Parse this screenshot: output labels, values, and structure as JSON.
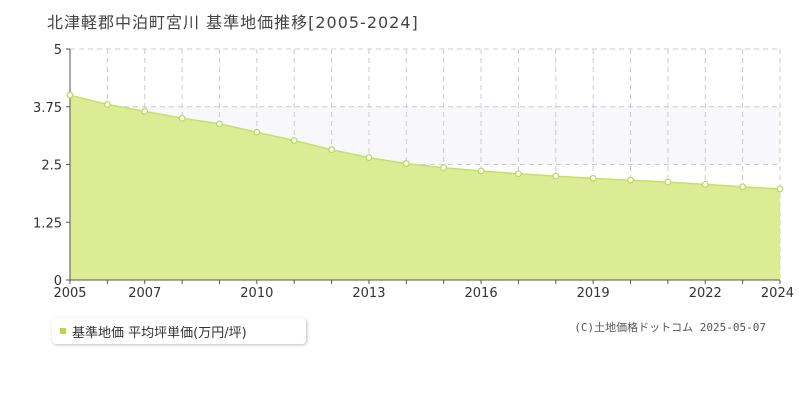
{
  "chart_data": {
    "type": "area",
    "title": "北津軽郡中泊町宮川 基準地価推移[2005-2024]",
    "x": [
      2005,
      2006,
      2007,
      2008,
      2009,
      2010,
      2011,
      2012,
      2013,
      2014,
      2015,
      2016,
      2017,
      2018,
      2019,
      2020,
      2021,
      2022,
      2023,
      2024
    ],
    "series": [
      {
        "name": "基準地価 平均坪単価(万円/坪)",
        "values": [
          4.0,
          3.8,
          3.65,
          3.5,
          3.38,
          3.2,
          3.02,
          2.82,
          2.65,
          2.52,
          2.43,
          2.36,
          2.3,
          2.25,
          2.2,
          2.16,
          2.12,
          2.07,
          2.02,
          1.97
        ]
      }
    ],
    "xlim": [
      2005,
      2024
    ],
    "ylim": [
      0,
      5
    ],
    "y_ticks": [
      0,
      1.25,
      2.5,
      3.75,
      5
    ],
    "y_tick_labels": [
      "0",
      "1.25",
      "2.5",
      "3.75",
      "5"
    ],
    "x_ticks": [
      2005,
      2007,
      2010,
      2013,
      2016,
      2019,
      2022,
      2024
    ],
    "grid": true,
    "legend_position": "bottom-left",
    "colors": {
      "fill": "#dcec94",
      "line": "#c5e06a",
      "marker_fill": "#ffffff",
      "marker_stroke": "#b9d85a",
      "grid": "#cccccc",
      "band": "#f8f7fb",
      "axis": "#555555"
    }
  },
  "legend": {
    "label": "基準地価 平均坪単価(万円/坪)"
  },
  "credit": "(C)土地価格ドットコム 2025-05-07"
}
